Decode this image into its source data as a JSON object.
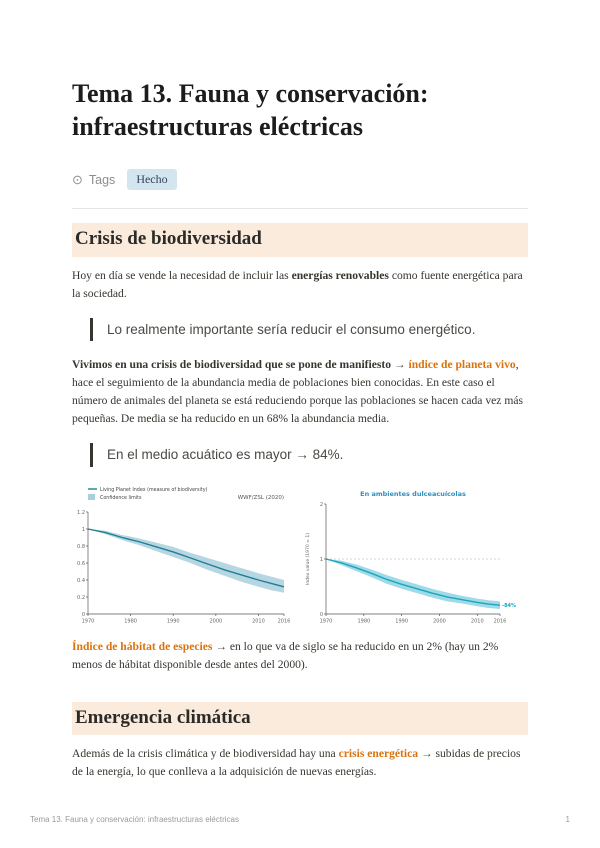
{
  "page": {
    "title": "Tema 13. Fauna y conservación: infraestructuras eléctricas",
    "footer": {
      "left": "Tema 13. Fauna y conservación: infraestructuras eléctricas",
      "page_number": "1"
    }
  },
  "properties": {
    "tags_label": "Tags",
    "tags_value": "Hecho"
  },
  "content": {
    "heading_crisis": "Crisis de biodiversidad",
    "p1": [
      {
        "t": "Hoy en día se vende la necesidad de incluir las ",
        "s": "plain"
      },
      {
        "t": "energías renovables",
        "s": "b"
      },
      {
        "t": " como fuente energética para la sociedad.",
        "s": "plain"
      }
    ],
    "quote1": "Lo realmente importante sería reducir el consumo energético.",
    "p2": [
      {
        "t": "Vivimos en una crisis de biodiversidad que se pone de manifiesto → ",
        "s": "b"
      },
      {
        "t": "índice de planeta vivo",
        "s": "link"
      },
      {
        "t": ", hace el seguimiento de la abundancia media de poblaciones bien conocidas. En este caso el número de animales del planeta se está reduciendo porque las poblaciones se hacen cada vez más pequeñas. De media se ha reducido en un 68% la abundancia media.",
        "s": "plain"
      }
    ],
    "quote2": "En el medio acuático es mayor → 84%.",
    "p3": [
      {
        "t": "Índice de hábitat de especies",
        "s": "link"
      },
      {
        "t": " → en lo que va de siglo se ha reducido en un 2% (hay un 2% menos de hábitat disponible desde antes del 2000).",
        "s": "plain"
      }
    ],
    "heading_emergencia": "Emergencia climática",
    "p4": [
      {
        "t": "Además de la crisis climática y de biodiversidad hay una ",
        "s": "plain"
      },
      {
        "t": "crisis energética",
        "s": "link"
      },
      {
        "t": " → subidas de precios de la energía, lo que conlleva a la adquisición de nuevas energías.",
        "s": "plain"
      }
    ]
  },
  "chart_data": [
    {
      "type": "line",
      "name": "living-planet-index",
      "legend": [
        {
          "marker": "line",
          "label": "Living Planet Index (measure of biodiversity)"
        },
        {
          "marker": "box",
          "label": "Confidence limits"
        }
      ],
      "annotation": "WWF/ZSL (2020)",
      "x": [
        1970,
        1974,
        1978,
        1982,
        1986,
        1990,
        1994,
        1998,
        2002,
        2006,
        2010,
        2013,
        2016
      ],
      "values": [
        1.0,
        0.96,
        0.9,
        0.85,
        0.79,
        0.73,
        0.66,
        0.59,
        0.52,
        0.46,
        0.4,
        0.36,
        0.32
      ],
      "band_upper": [
        1.0,
        0.98,
        0.93,
        0.89,
        0.84,
        0.79,
        0.72,
        0.66,
        0.6,
        0.54,
        0.48,
        0.44,
        0.4
      ],
      "band_lower": [
        1.0,
        0.94,
        0.87,
        0.81,
        0.74,
        0.67,
        0.6,
        0.52,
        0.45,
        0.38,
        0.32,
        0.28,
        0.25
      ],
      "xlim": [
        1970,
        2016
      ],
      "ylim": [
        0,
        1.2
      ],
      "xticks": [
        1970,
        1980,
        1990,
        2000,
        2010,
        2016
      ],
      "yticks": [
        0,
        0.2,
        0.4,
        0.6,
        0.8,
        1,
        1.2
      ],
      "line_color": "#1f7f95",
      "band_color": "#a9cfdd",
      "margins": {
        "l": 16,
        "r": 10,
        "t": 30,
        "b": 14
      }
    },
    {
      "type": "line",
      "name": "freshwater-living-planet-index",
      "title": "En ambientes dulceacuícolas",
      "title_color": "#2e8fbe",
      "ylabel": "Index value (1970 = 1)",
      "x": [
        1970,
        1974,
        1978,
        1982,
        1986,
        1990,
        1994,
        1998,
        2002,
        2006,
        2010,
        2013,
        2016
      ],
      "values": [
        1.0,
        0.93,
        0.84,
        0.74,
        0.63,
        0.54,
        0.46,
        0.38,
        0.31,
        0.26,
        0.21,
        0.18,
        0.16
      ],
      "band_upper": [
        1.0,
        0.97,
        0.9,
        0.81,
        0.71,
        0.62,
        0.54,
        0.46,
        0.39,
        0.33,
        0.28,
        0.25,
        0.23
      ],
      "band_lower": [
        1.0,
        0.89,
        0.78,
        0.67,
        0.55,
        0.46,
        0.38,
        0.3,
        0.23,
        0.19,
        0.14,
        0.11,
        0.09
      ],
      "xlim": [
        1970,
        2016
      ],
      "ylim": [
        0,
        2
      ],
      "xticks": [
        1970,
        1980,
        1990,
        2000,
        2010,
        2016
      ],
      "yticks": [
        0,
        1,
        2
      ],
      "ref_line_y": 1,
      "end_label": "-84%",
      "line_color": "#17a6c0",
      "band_color": "#8fd4e2",
      "margins": {
        "l": 24,
        "r": 24,
        "t": 22,
        "b": 14
      }
    }
  ]
}
